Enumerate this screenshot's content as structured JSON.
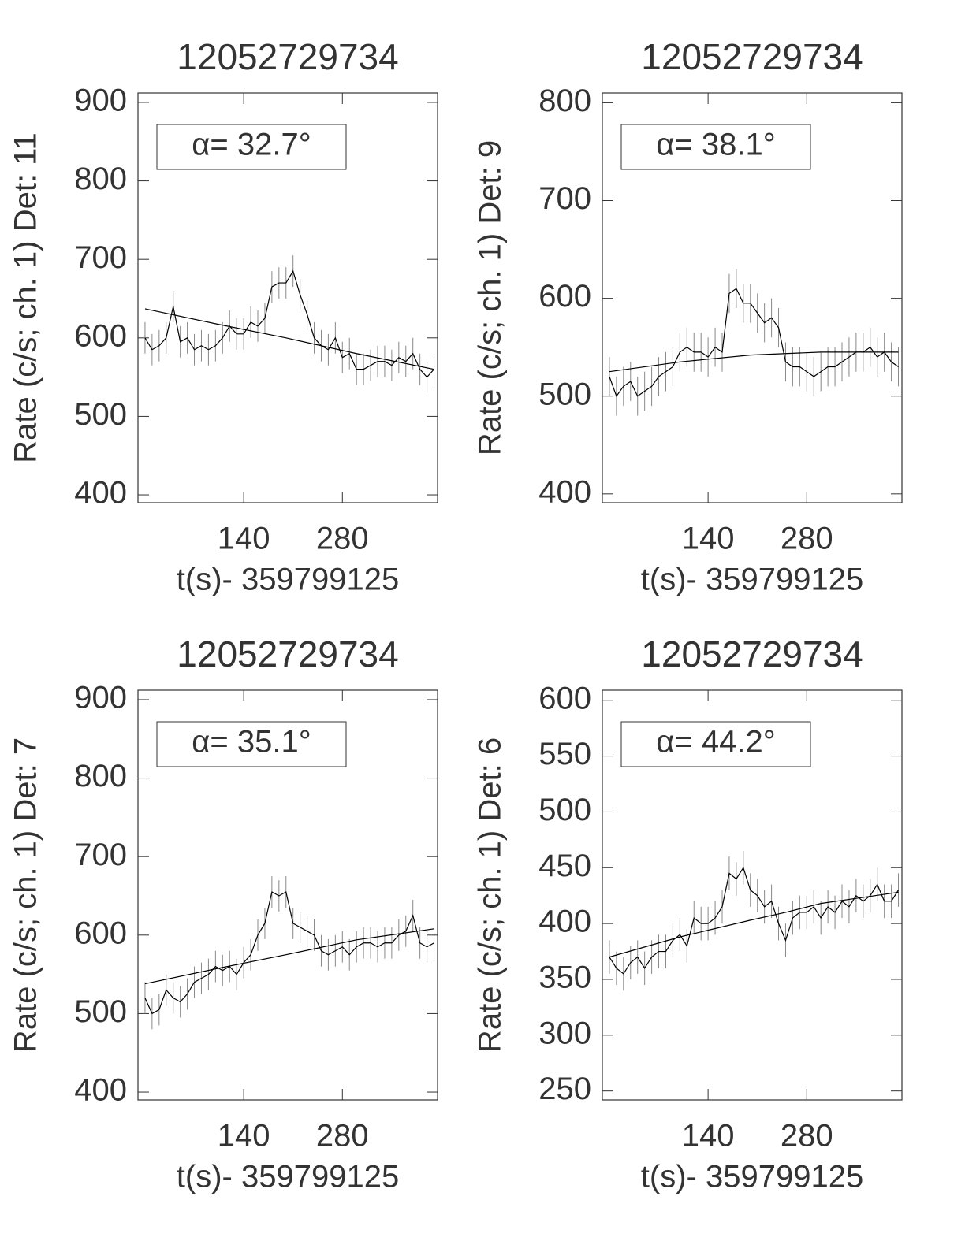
{
  "chart_data": [
    {
      "type": "line",
      "title": "12052729734",
      "xlabel": "t(s)- 359799125",
      "ylabel": "Rate (c/s; ch. 1) Det: 11",
      "annotation": "α= 32.7°",
      "xlim": [
        -10,
        415
      ],
      "xticks": [
        140,
        280
      ],
      "ylim": [
        390,
        912
      ],
      "yticks": [
        400,
        500,
        600,
        700,
        800,
        900
      ],
      "color": "#000000",
      "error": 20,
      "x": [
        0,
        10,
        20,
        30,
        40,
        50,
        60,
        70,
        80,
        90,
        100,
        110,
        120,
        130,
        140,
        150,
        160,
        170,
        180,
        190,
        200,
        210,
        220,
        230,
        240,
        250,
        260,
        270,
        280,
        290,
        300,
        310,
        320,
        330,
        340,
        350,
        360,
        370,
        380,
        390,
        400,
        410
      ],
      "values": [
        600,
        585,
        590,
        600,
        640,
        595,
        600,
        585,
        590,
        585,
        590,
        600,
        615,
        605,
        605,
        620,
        615,
        625,
        665,
        670,
        670,
        685,
        655,
        630,
        600,
        590,
        585,
        600,
        575,
        580,
        560,
        560,
        565,
        570,
        570,
        565,
        575,
        570,
        580,
        560,
        550,
        560
      ],
      "fit": {
        "x": [
          0,
          100,
          200,
          300,
          410
        ],
        "values": [
          637,
          618,
          600,
          580,
          560
        ]
      }
    },
    {
      "type": "line",
      "title": "12052729734",
      "xlabel": "t(s)- 359799125",
      "ylabel": "Rate (c/s; ch. 1) Det: 9",
      "annotation": "α= 38.1°",
      "xlim": [
        -10,
        415
      ],
      "xticks": [
        140,
        280
      ],
      "ylim": [
        391,
        810
      ],
      "yticks": [
        400,
        500,
        600,
        700,
        800
      ],
      "color": "#000000",
      "error": 20,
      "x": [
        0,
        10,
        20,
        30,
        40,
        50,
        60,
        70,
        80,
        90,
        100,
        110,
        120,
        130,
        140,
        150,
        160,
        170,
        180,
        190,
        200,
        210,
        220,
        230,
        240,
        250,
        260,
        270,
        280,
        290,
        300,
        310,
        320,
        330,
        340,
        350,
        360,
        370,
        380,
        390,
        400,
        410
      ],
      "values": [
        520,
        500,
        510,
        515,
        500,
        505,
        510,
        520,
        525,
        530,
        545,
        550,
        545,
        545,
        540,
        550,
        545,
        605,
        610,
        595,
        595,
        585,
        575,
        580,
        570,
        535,
        530,
        530,
        525,
        520,
        525,
        530,
        530,
        535,
        540,
        545,
        545,
        550,
        540,
        545,
        535,
        530
      ],
      "fit": {
        "x": [
          0,
          100,
          200,
          300,
          410
        ],
        "values": [
          525,
          535,
          542,
          545,
          545
        ]
      }
    },
    {
      "type": "line",
      "title": "12052729734",
      "xlabel": "t(s)- 359799125",
      "ylabel": "Rate (c/s; ch. 1) Det: 7",
      "annotation": "α= 35.1°",
      "xlim": [
        -10,
        415
      ],
      "xticks": [
        140,
        280
      ],
      "ylim": [
        390,
        912
      ],
      "yticks": [
        400,
        500,
        600,
        700,
        800,
        900
      ],
      "color": "#000000",
      "error": 20,
      "x": [
        0,
        10,
        20,
        30,
        40,
        50,
        60,
        70,
        80,
        90,
        100,
        110,
        120,
        130,
        140,
        150,
        160,
        170,
        180,
        190,
        200,
        210,
        220,
        230,
        240,
        250,
        260,
        270,
        280,
        290,
        300,
        310,
        320,
        330,
        340,
        350,
        360,
        370,
        380,
        390,
        400,
        410
      ],
      "values": [
        520,
        500,
        505,
        530,
        520,
        515,
        525,
        540,
        545,
        550,
        560,
        555,
        560,
        550,
        565,
        575,
        600,
        615,
        655,
        650,
        655,
        615,
        610,
        605,
        600,
        580,
        575,
        580,
        585,
        575,
        585,
        590,
        590,
        585,
        590,
        590,
        600,
        605,
        625,
        590,
        585,
        590
      ],
      "fit": {
        "x": [
          0,
          100,
          200,
          300,
          410
        ],
        "values": [
          538,
          557,
          575,
          594,
          608
        ]
      }
    },
    {
      "type": "line",
      "title": "12052729734",
      "xlabel": "t(s)- 359799125",
      "ylabel": "Rate (c/s; ch. 1) Det: 6",
      "annotation": "α= 44.2°",
      "xlim": [
        -10,
        415
      ],
      "xticks": [
        140,
        280
      ],
      "ylim": [
        242,
        609
      ],
      "yticks": [
        250,
        300,
        350,
        400,
        450,
        500,
        550,
        600
      ],
      "color": "#000000",
      "error": 15,
      "x": [
        0,
        10,
        20,
        30,
        40,
        50,
        60,
        70,
        80,
        90,
        100,
        110,
        120,
        130,
        140,
        150,
        160,
        170,
        180,
        190,
        200,
        210,
        220,
        230,
        240,
        250,
        260,
        270,
        280,
        290,
        300,
        310,
        320,
        330,
        340,
        350,
        360,
        370,
        380,
        390,
        400,
        410
      ],
      "values": [
        370,
        360,
        355,
        365,
        370,
        360,
        370,
        375,
        375,
        385,
        390,
        380,
        405,
        400,
        400,
        405,
        415,
        445,
        440,
        450,
        430,
        425,
        415,
        420,
        400,
        385,
        405,
        410,
        410,
        415,
        405,
        415,
        410,
        420,
        415,
        425,
        420,
        425,
        435,
        420,
        420,
        430
      ],
      "fit": {
        "x": [
          0,
          100,
          200,
          250,
          300,
          410
        ],
        "values": [
          370,
          388,
          403,
          410,
          418,
          428
        ]
      }
    }
  ]
}
